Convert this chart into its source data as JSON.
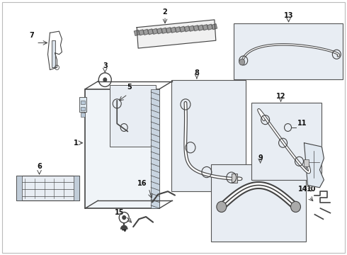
{
  "bg": "#ffffff",
  "lc": "#444444",
  "lc2": "#666666",
  "box_bg": "#e8edf3",
  "box_ec": "#555555",
  "lw_thin": 0.5,
  "lw_med": 1.0,
  "lw_thick": 2.5,
  "fs_label": 7,
  "figw": 4.9,
  "figh": 3.6,
  "dpi": 100
}
